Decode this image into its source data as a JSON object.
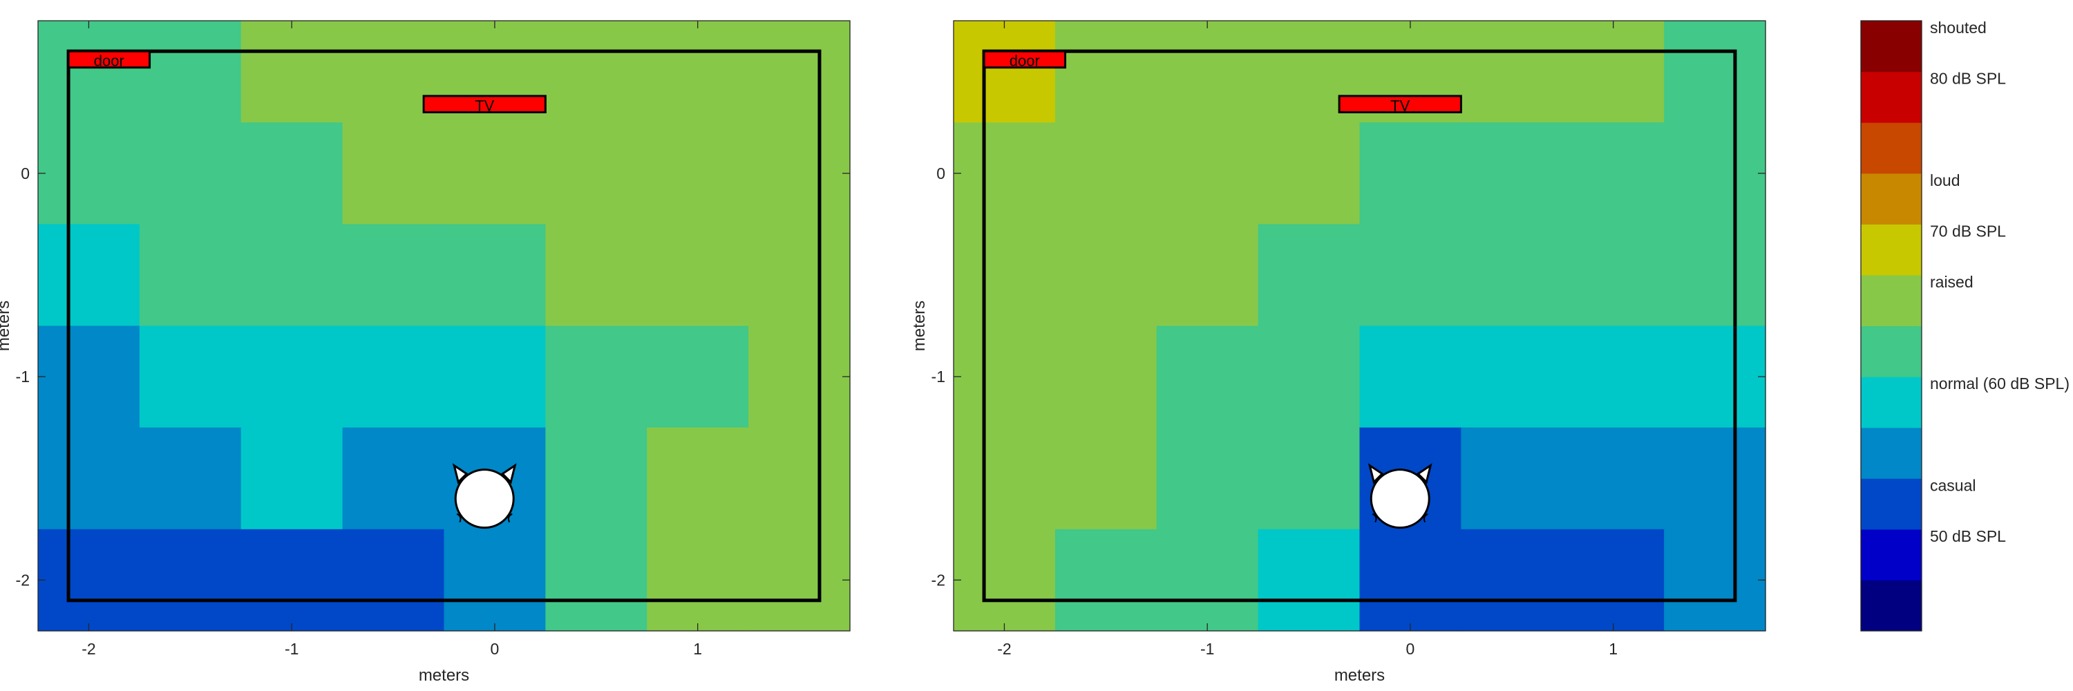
{
  "chart_data": {
    "type": "heatmap",
    "panels": [
      {
        "id": "left",
        "xlabel": "meters",
        "ylabel": "meters",
        "xlim": [
          -2.25,
          1.75
        ],
        "ylim": [
          -2.25,
          0.75
        ],
        "xticks": [
          {
            "value": -2,
            "label": "-2"
          },
          {
            "value": -1,
            "label": "-1"
          },
          {
            "value": 0,
            "label": "0"
          },
          {
            "value": 1,
            "label": "1"
          }
        ],
        "yticks": [
          {
            "value": 0,
            "label": "0"
          },
          {
            "value": -1,
            "label": "-1"
          },
          {
            "value": -2,
            "label": "-2"
          }
        ],
        "x_centers": [
          -2,
          -1.5,
          -1,
          -0.5,
          0,
          0.5,
          1,
          1.5
        ],
        "y_centers": [
          0.5,
          0,
          -0.5,
          -1,
          -1.5,
          -2
        ],
        "grid": [
          [
            5,
            5,
            6,
            6,
            6,
            6,
            6,
            6
          ],
          [
            5,
            5,
            5,
            6,
            6,
            6,
            6,
            6
          ],
          [
            4,
            5,
            5,
            5,
            5,
            6,
            6,
            6
          ],
          [
            3,
            4,
            4,
            4,
            4,
            5,
            5,
            6
          ],
          [
            3,
            3,
            4,
            3,
            3,
            5,
            6,
            6
          ],
          [
            2,
            2,
            2,
            2,
            3,
            5,
            6,
            6
          ]
        ],
        "room_outline": {
          "x": [
            -2.1,
            1.6
          ],
          "y": [
            -2.1,
            0.6
          ]
        },
        "objects": [
          {
            "name": "door",
            "label": "door",
            "x": [
              -2.1,
              -1.7
            ],
            "y": [
              0.52,
              0.6
            ]
          },
          {
            "name": "tv",
            "label": "TV",
            "x": [
              -0.35,
              0.25
            ],
            "y": [
              0.3,
              0.38
            ]
          }
        ],
        "listener": {
          "x": -0.05,
          "y": -1.6
        }
      },
      {
        "id": "right",
        "xlabel": "meters",
        "ylabel": "meters",
        "xlim": [
          -2.25,
          1.75
        ],
        "ylim": [
          -2.25,
          0.75
        ],
        "xticks": [
          {
            "value": -2,
            "label": "-2"
          },
          {
            "value": -1,
            "label": "-1"
          },
          {
            "value": 0,
            "label": "0"
          },
          {
            "value": 1,
            "label": "1"
          }
        ],
        "yticks": [
          {
            "value": 0,
            "label": "0"
          },
          {
            "value": -1,
            "label": "-1"
          },
          {
            "value": -2,
            "label": "-2"
          }
        ],
        "x_centers": [
          -2,
          -1.5,
          -1,
          -0.5,
          0,
          0.5,
          1,
          1.5
        ],
        "y_centers": [
          0.5,
          0,
          -0.5,
          -1,
          -1.5,
          -2
        ],
        "grid": [
          [
            7,
            6,
            6,
            6,
            6,
            6,
            6,
            5
          ],
          [
            6,
            6,
            6,
            6,
            5,
            5,
            5,
            5
          ],
          [
            6,
            6,
            6,
            5,
            5,
            5,
            5,
            5
          ],
          [
            6,
            6,
            5,
            5,
            4,
            4,
            4,
            4
          ],
          [
            6,
            6,
            5,
            5,
            2,
            3,
            3,
            3
          ],
          [
            6,
            5,
            5,
            4,
            2,
            2,
            2,
            3
          ]
        ],
        "room_outline": {
          "x": [
            -2.1,
            1.6
          ],
          "y": [
            -2.1,
            0.6
          ]
        },
        "objects": [
          {
            "name": "door",
            "label": "door",
            "x": [
              -2.1,
              -1.7
            ],
            "y": [
              0.52,
              0.6
            ]
          },
          {
            "name": "tv",
            "label": "TV",
            "x": [
              -0.35,
              0.25
            ],
            "y": [
              0.3,
              0.38
            ]
          }
        ],
        "listener": {
          "x": -0.05,
          "y": -1.6
        }
      }
    ],
    "colorbar": {
      "levels": [
        {
          "index": 0,
          "color": "#000080",
          "label": ""
        },
        {
          "index": 1,
          "color": "#0000c8",
          "label": "50 dB SPL"
        },
        {
          "index": 2,
          "color": "#0048c8",
          "label": "casual"
        },
        {
          "index": 3,
          "color": "#0088c8",
          "label": ""
        },
        {
          "index": 4,
          "color": "#00c8c8",
          "label": "normal (60 dB SPL)"
        },
        {
          "index": 5,
          "color": "#42c888",
          "label": ""
        },
        {
          "index": 6,
          "color": "#88c848",
          "label": "raised"
        },
        {
          "index": 7,
          "color": "#c8c800",
          "label": "70 dB SPL"
        },
        {
          "index": 8,
          "color": "#c88800",
          "label": "loud"
        },
        {
          "index": 9,
          "color": "#c84800",
          "label": ""
        },
        {
          "index": 10,
          "color": "#c80000",
          "label": "80 dB SPL"
        },
        {
          "index": 11,
          "color": "#880000",
          "label": "shouted"
        }
      ]
    }
  }
}
